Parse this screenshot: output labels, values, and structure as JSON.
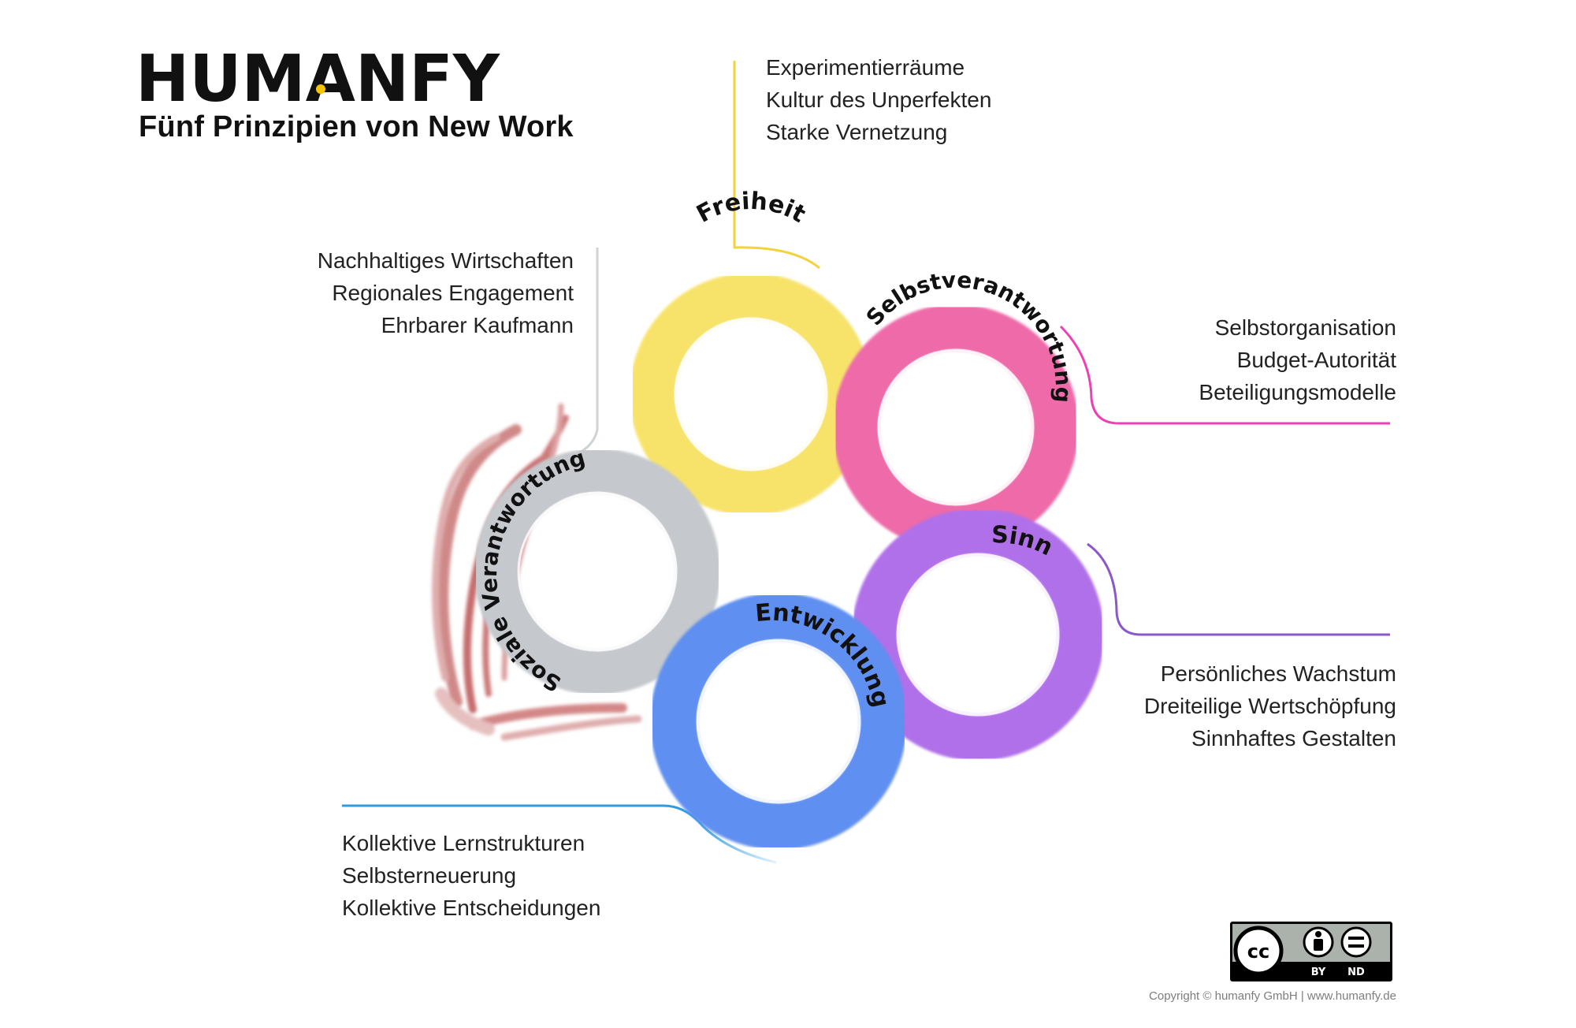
{
  "logo": {
    "text": "HUMANFY",
    "accent_color": "#f2c500"
  },
  "subtitle": "Fünf Prinzipien von New Work",
  "rings": {
    "freiheit": {
      "label": "Freiheit",
      "color": "#f7e36a"
    },
    "selbstverantwortung": {
      "label": "Selbstverantwortung",
      "color": "#ee6aa8"
    },
    "sinn": {
      "label": "Sinn",
      "color": "#b070ea"
    },
    "entwicklung": {
      "label": "Entwicklung",
      "color": "#5f8ff0"
    },
    "soziale_verantwortung": {
      "label": "Soziale Verantwortung",
      "color": "#c5c8cc"
    }
  },
  "principles": {
    "freiheit": [
      "Experimentierräume",
      "Kultur des Unperfekten",
      "Starke Vernetzung"
    ],
    "soziale_verantwortung": [
      "Nachhaltiges Wirtschaften",
      "Regionales Engagement",
      "Ehrbarer Kaufmann"
    ],
    "selbstverantwortung": [
      "Selbstorganisation",
      "Budget-Autorität",
      "Beteiligungsmodelle"
    ],
    "sinn": [
      "Persönliches Wachstum",
      "Dreiteilige Wertschöpfung",
      "Sinnhaftes Gestalten"
    ],
    "entwicklung": [
      "Kollektive Lernstrukturen",
      "Selbsterneuerung",
      "Kollektive Entscheidungen"
    ]
  },
  "connector_colors": {
    "freiheit": "#f4d23a",
    "sozial": "#cfd3d6",
    "selbst": "#ee3fb4",
    "sinn": "#8b58c8",
    "entw": "#2f9be0"
  },
  "license": {
    "cc": "cc",
    "by": "BY",
    "nd": "ND"
  },
  "copyright": "Copyright © humanfy GmbH | www.humanfy.de"
}
